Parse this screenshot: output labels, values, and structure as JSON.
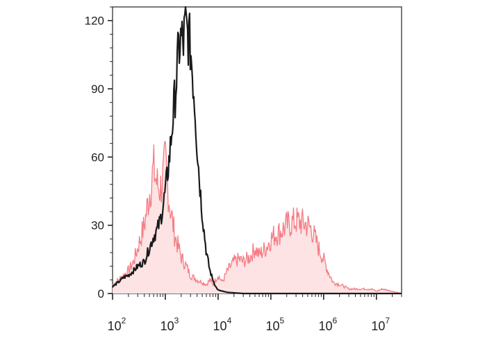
{
  "chart_data": {
    "type": "area",
    "title": "",
    "xlabel": "",
    "ylabel": "",
    "x_scale": "log",
    "xlim": [
      100,
      30000000
    ],
    "ylim": [
      0,
      126
    ],
    "grid": false,
    "legend": "none",
    "y_ticks": [
      {
        "value": 0,
        "label": "0"
      },
      {
        "value": 30,
        "label": "30"
      },
      {
        "value": 60,
        "label": "60"
      },
      {
        "value": 90,
        "label": "90"
      },
      {
        "value": 120,
        "label": "120"
      }
    ],
    "x_ticks": [
      {
        "value": 100,
        "base": "10",
        "exp": "2"
      },
      {
        "value": 1000,
        "base": "10",
        "exp": "3"
      },
      {
        "value": 10000,
        "base": "10",
        "exp": "4"
      },
      {
        "value": 100000,
        "base": "10",
        "exp": "5"
      },
      {
        "value": 1000000,
        "base": "10",
        "exp": "6"
      },
      {
        "value": 10000000,
        "base": "10",
        "exp": "7"
      }
    ],
    "series": [
      {
        "style": "filled",
        "color": "#f47c84",
        "fill": "#fde3e4",
        "x": [
          100,
          130,
          160,
          200,
          250,
          300,
          400,
          500,
          600,
          700,
          800,
          900,
          1000,
          1200,
          1500,
          2000,
          2500,
          3000,
          4000,
          5000,
          6000,
          7000,
          8000,
          10000,
          12000,
          15000,
          20000,
          25000,
          30000,
          40000,
          50000,
          60000,
          80000,
          100000,
          120000,
          150000,
          200000,
          250000,
          300000,
          400000,
          500000,
          600000,
          800000,
          1000000,
          1200000,
          1500000,
          2000000,
          2500000,
          3000000,
          4000000,
          5000000,
          6000000,
          8000000,
          10000000,
          13000000,
          20000000,
          30000000
        ],
        "y": [
          4,
          6,
          8,
          10,
          14,
          20,
          30,
          44,
          55,
          48,
          46,
          50,
          58,
          40,
          26,
          16,
          12,
          8,
          6,
          5,
          4,
          6,
          4,
          8,
          5,
          10,
          14,
          15,
          14,
          16,
          20,
          17,
          20,
          24,
          26,
          27,
          30,
          31,
          32,
          31,
          30,
          28,
          20,
          15,
          10,
          5,
          4,
          3,
          2,
          2,
          2,
          2,
          2,
          1,
          2,
          1,
          0
        ]
      },
      {
        "style": "line",
        "color": "#1a1a1a",
        "x": [
          100,
          130,
          160,
          200,
          250,
          300,
          400,
          500,
          600,
          700,
          800,
          900,
          1000,
          1200,
          1400,
          1600,
          1800,
          2000,
          2200,
          2400,
          2600,
          2800,
          3000,
          3200,
          3400,
          3700,
          4000,
          4500,
          5000,
          6000,
          7000,
          8000,
          9000,
          10000,
          12000,
          15000,
          20000,
          30000,
          50000,
          100000,
          1000000,
          30000000
        ],
        "y": [
          3,
          5,
          7,
          8,
          10,
          12,
          14,
          20,
          25,
          28,
          32,
          38,
          45,
          60,
          78,
          92,
          108,
          112,
          110,
          118,
          114,
          112,
          108,
          100,
          92,
          80,
          65,
          48,
          35,
          18,
          10,
          6,
          3,
          1.5,
          1,
          0.5,
          0.3,
          0,
          0,
          0,
          0,
          0
        ]
      }
    ]
  }
}
